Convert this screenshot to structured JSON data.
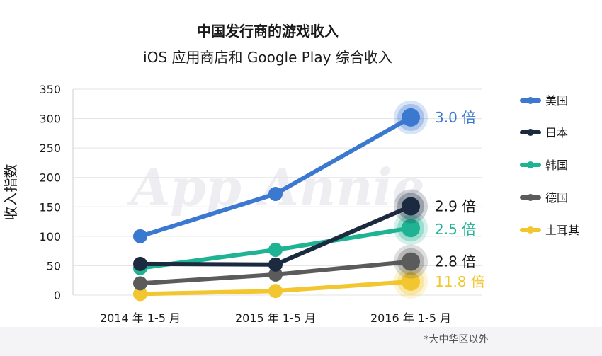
{
  "chart_data": {
    "type": "line",
    "title": "中国发行商的游戏收入",
    "subtitle": "iOS 应用商店和 Google Play 综合收入",
    "ylabel": "收入指数",
    "xlabel": "",
    "categories": [
      "2014 年 1-5 月",
      "2015 年 1-5 月",
      "2016 年 1-5 月"
    ],
    "ylim": [
      0,
      350
    ],
    "yticks": [
      0,
      50,
      100,
      150,
      200,
      250,
      300,
      350
    ],
    "grid": true,
    "legend_position": "right",
    "series": [
      {
        "name": "美国",
        "values": [
          100,
          172,
          302
        ],
        "color": "#3b78d0",
        "annotation": "3.0 倍"
      },
      {
        "name": "日本",
        "values": [
          53,
          52,
          151
        ],
        "color": "#1c2a3f",
        "annotation": "2.9 倍"
      },
      {
        "name": "韩国",
        "values": [
          46,
          77,
          114
        ],
        "color": "#1db393",
        "annotation": "2.5 倍"
      },
      {
        "name": "德国",
        "values": [
          20,
          35,
          57
        ],
        "color": "#5b5b5b",
        "annotation": "2.8 倍"
      },
      {
        "name": "土耳其",
        "values": [
          2,
          7,
          23
        ],
        "color": "#f2c62e",
        "annotation": "11.8 倍"
      }
    ],
    "footnote": "*大中华区以外",
    "watermark": "App Annie"
  }
}
